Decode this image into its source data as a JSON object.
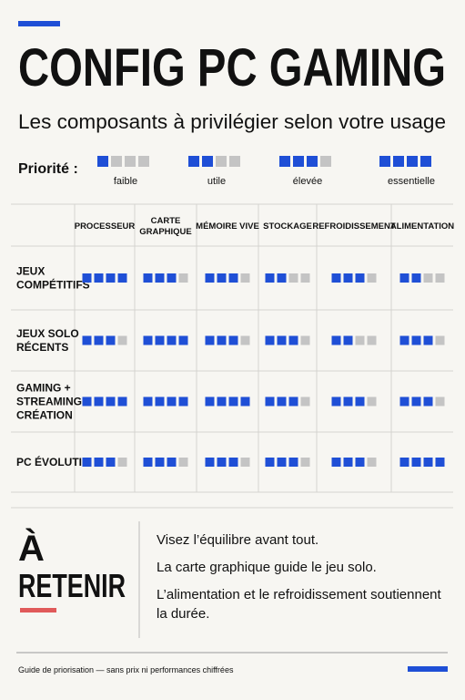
{
  "header": {
    "title": "CONFIG PC GAMING",
    "subtitle": "Les composants à privilégier selon votre usage"
  },
  "legend": {
    "label": "Priorité :",
    "levels": [
      {
        "level": 1,
        "label": "faible"
      },
      {
        "level": 2,
        "label": "utile"
      },
      {
        "level": 3,
        "label": "élevée"
      },
      {
        "level": 4,
        "label": "essentielle"
      }
    ]
  },
  "table": {
    "columns": [
      [
        "PROCESSEUR"
      ],
      [
        "CARTE",
        "GRAPHIQUE"
      ],
      [
        "MÉMOIRE VIVE"
      ],
      [
        "STOCKAGE"
      ],
      [
        "REFROIDISSEMENT"
      ],
      [
        "ALIMENTATION"
      ]
    ],
    "rows": [
      {
        "label": [
          "JEUX",
          "COMPÉTITIFS"
        ],
        "levels": [
          4,
          3,
          3,
          2,
          3,
          2
        ]
      },
      {
        "label": [
          "JEUX SOLO",
          "RÉCENTS"
        ],
        "levels": [
          3,
          4,
          3,
          3,
          2,
          3
        ]
      },
      {
        "label": [
          "GAMING +",
          "STREAMING /",
          "CRÉATION"
        ],
        "levels": [
          4,
          4,
          4,
          3,
          3,
          3
        ]
      },
      {
        "label": [
          "PC ÉVOLUTIF"
        ],
        "levels": [
          3,
          3,
          3,
          3,
          3,
          4
        ]
      }
    ]
  },
  "takeaway": {
    "title": [
      "À",
      "RETENIR"
    ],
    "points": [
      [
        "Visez l’équilibre avant tout."
      ],
      [
        "La carte graphique guide le jeu solo."
      ],
      [
        "L’alimentation et le refroidissement soutiennent",
        "la durée."
      ]
    ]
  },
  "footer": {
    "note": "Guide de priorisation — sans prix ni performances chiffrées"
  }
}
